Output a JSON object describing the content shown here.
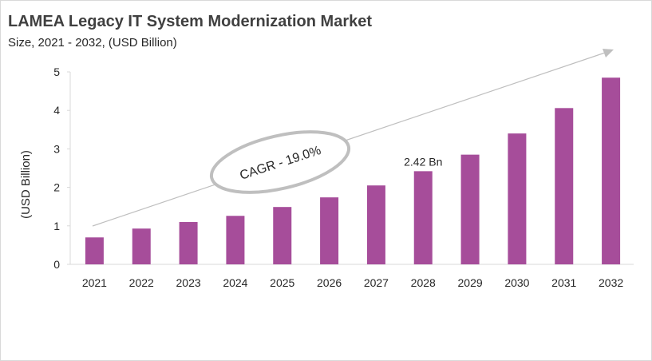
{
  "chart_data": {
    "type": "bar",
    "title": "LAMEA Legacy IT System Modernization  Market",
    "subtitle": "Size, 2021 - 2032, (USD Billion)",
    "ylabel": "(USD Billion)",
    "xlabel": "",
    "ylim": [
      0,
      5
    ],
    "yticks": [
      "0",
      "1",
      "2",
      "3",
      "4",
      "5"
    ],
    "categories": [
      "2021",
      "2022",
      "2023",
      "2024",
      "2025",
      "2026",
      "2027",
      "2028",
      "2029",
      "2030",
      "2031",
      "2032"
    ],
    "values": [
      0.7,
      0.93,
      1.1,
      1.26,
      1.49,
      1.74,
      2.05,
      2.42,
      2.85,
      3.4,
      4.06,
      4.85
    ],
    "data_labels": [
      {
        "category": "2028",
        "text": "2.42 Bn"
      }
    ],
    "annotation": "CAGR - 19.0%",
    "bar_color": "#a64d9a",
    "grid": false,
    "legend": "none"
  }
}
